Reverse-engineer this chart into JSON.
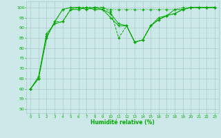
{
  "xlabel": "Humidité relative (%)",
  "bg_color": "#cce8e8",
  "grid_color": "#aacccc",
  "line_color": "#00aa00",
  "xlim": [
    -0.5,
    23.5
  ],
  "ylim": [
    48,
    103
  ],
  "yticks": [
    50,
    55,
    60,
    65,
    70,
    75,
    80,
    85,
    90,
    95,
    100
  ],
  "xticks": [
    0,
    1,
    2,
    3,
    4,
    5,
    6,
    7,
    8,
    9,
    10,
    11,
    12,
    13,
    14,
    15,
    16,
    17,
    18,
    19,
    20,
    21,
    22,
    23
  ],
  "line1_x": [
    0,
    1,
    2,
    3,
    4,
    5,
    6,
    7,
    8,
    9,
    10,
    11,
    12,
    13,
    14,
    15,
    16,
    17,
    18,
    19,
    20,
    21,
    22,
    23
  ],
  "line1_y": [
    60,
    65,
    86,
    92,
    99,
    100,
    100,
    100,
    100,
    100,
    99,
    99,
    99,
    99,
    99,
    99,
    99,
    99,
    99,
    100,
    100,
    100,
    100,
    100
  ],
  "line2_x": [
    0,
    1,
    2,
    3,
    4,
    5,
    6,
    7,
    8,
    9,
    10,
    11,
    12,
    13,
    14,
    15,
    16,
    17,
    18,
    19,
    20,
    21,
    22,
    23
  ],
  "line2_y": [
    60,
    65,
    85,
    93,
    99,
    100,
    100,
    99,
    100,
    99,
    97,
    92,
    91,
    83,
    84,
    91,
    94,
    96,
    97,
    99,
    100,
    100,
    100,
    100
  ],
  "line3_x": [
    0,
    1,
    2,
    3,
    4,
    5,
    6,
    7,
    8,
    9,
    10,
    11,
    12,
    13,
    14,
    15,
    16,
    17,
    18,
    19,
    20,
    21,
    22,
    23
  ],
  "line3_y": [
    60,
    65,
    85,
    93,
    93,
    99,
    100,
    100,
    100,
    100,
    98,
    85,
    91,
    83,
    84,
    91,
    94,
    96,
    97,
    99,
    100,
    100,
    100,
    100
  ],
  "line4_x": [
    0,
    1,
    2,
    3,
    4,
    5,
    6,
    7,
    8,
    9,
    10,
    11,
    12,
    13,
    14,
    15,
    16,
    17,
    18,
    19,
    20,
    21,
    22,
    23
  ],
  "line4_y": [
    60,
    66,
    87,
    92,
    93,
    99,
    99,
    100,
    99,
    99,
    95,
    91,
    91,
    83,
    84,
    91,
    95,
    96,
    99,
    99,
    100,
    100,
    100,
    100
  ]
}
